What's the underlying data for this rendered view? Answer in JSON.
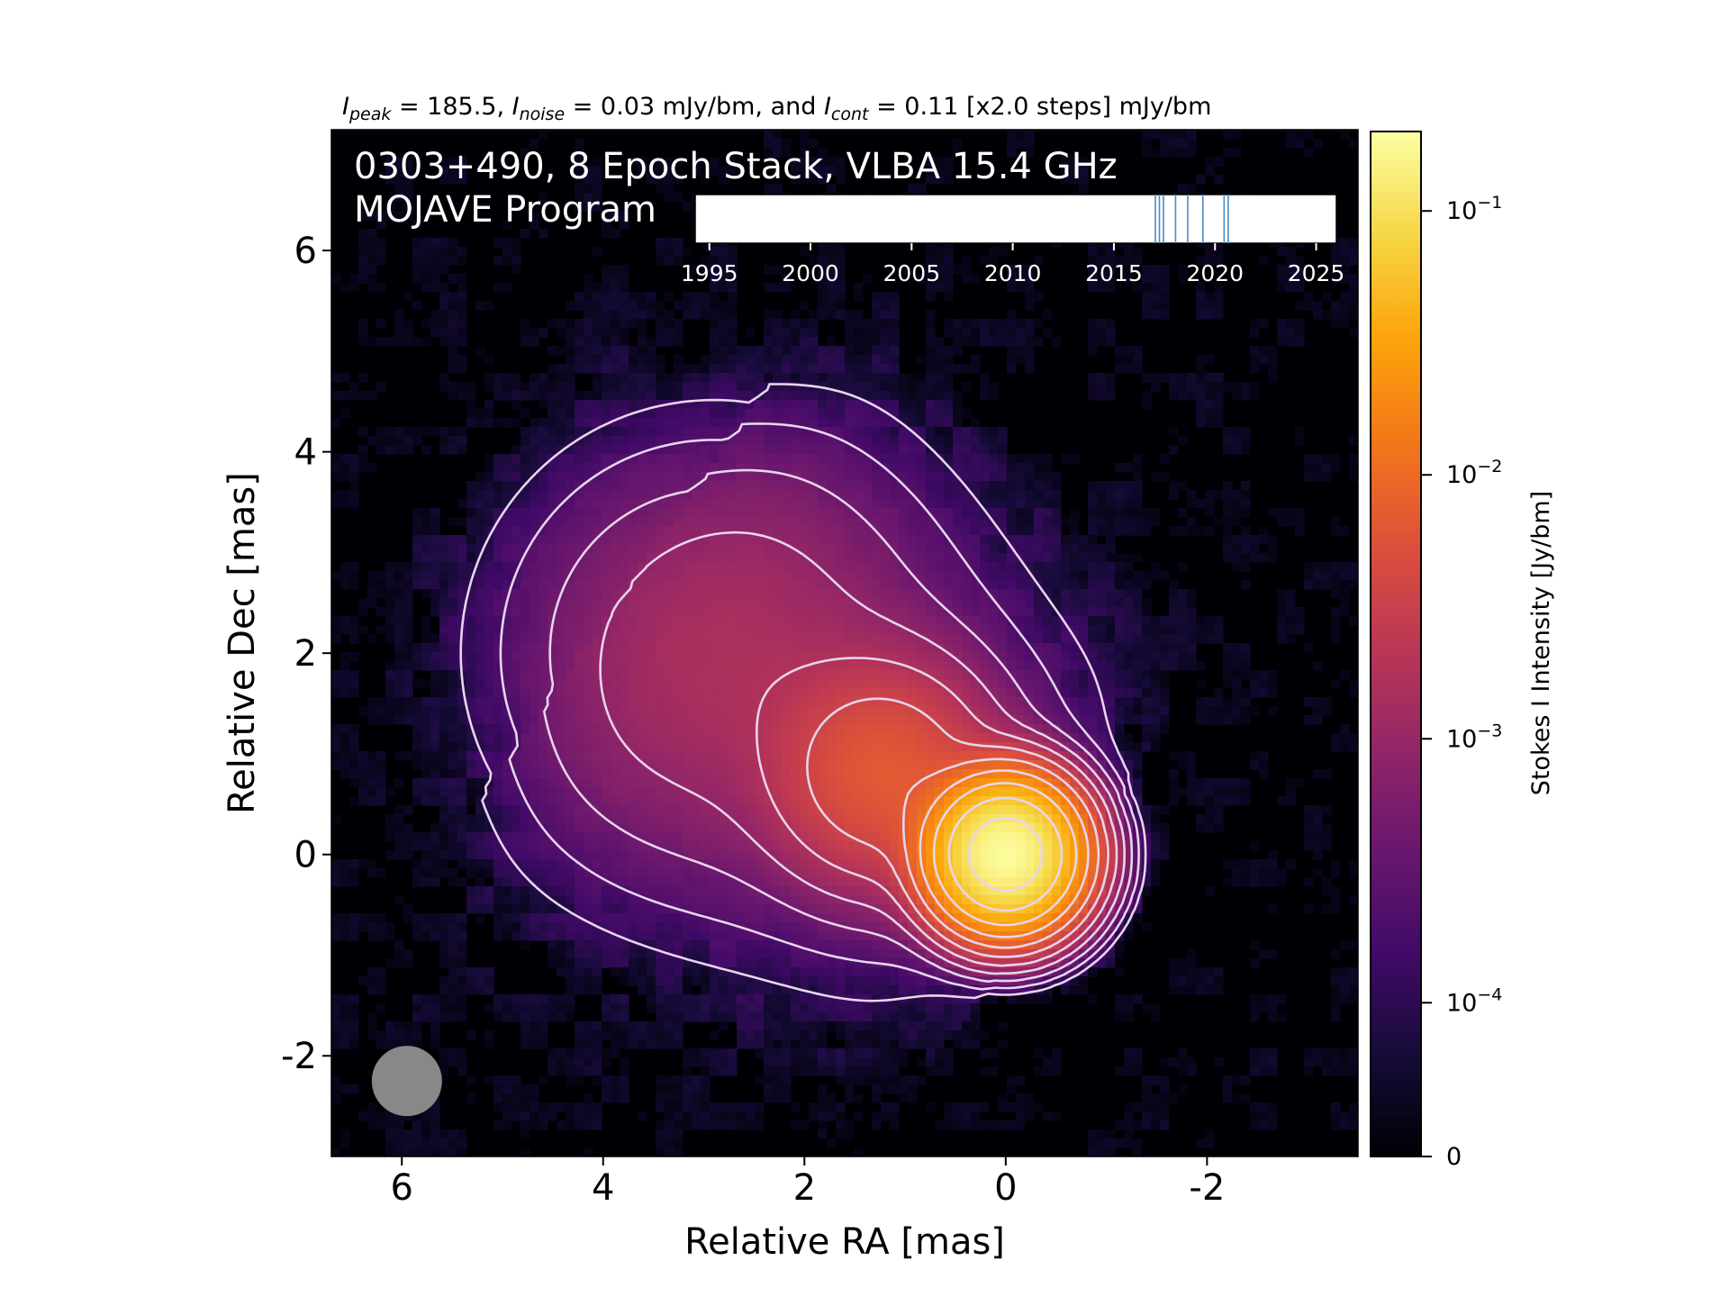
{
  "chart_data": {
    "type": "heatmap",
    "header": {
      "parts": [
        {
          "sym": "I",
          "sub": "peak"
        },
        {
          "text": " = 185.5, "
        },
        {
          "sym": "I",
          "sub": "noise"
        },
        {
          "text": " = 0.03 mJy/bm, and "
        },
        {
          "sym": "I",
          "sub": "cont"
        },
        {
          "text": " = 0.11 [x2.0 steps] mJy/bm"
        }
      ]
    },
    "overlay_title": [
      "0303+490, 8 Epoch Stack, VLBA 15.4 GHz",
      "MOJAVE Program"
    ],
    "xlabel": "Relative RA [mas]",
    "ylabel": "Relative Dec [mas]",
    "xlim": [
      6.7,
      -3.5
    ],
    "ylim": [
      -3.0,
      7.2
    ],
    "xticks": [
      6,
      4,
      2,
      0,
      -2
    ],
    "yticks": [
      6,
      4,
      2,
      0,
      -2
    ],
    "colorbar": {
      "label": "Stokes I Intensity [Jy/bm]",
      "scale": "log",
      "ticks": [
        {
          "value": 0.1,
          "mant": "10",
          "exp": "−1"
        },
        {
          "value": 0.01,
          "mant": "10",
          "exp": "−2"
        },
        {
          "value": 0.001,
          "mant": "10",
          "exp": "−3"
        },
        {
          "value": 0.0001,
          "mant": "10",
          "exp": "−4"
        },
        {
          "value": 0,
          "label": "0"
        }
      ],
      "colormap": "inferno"
    },
    "source": {
      "core": {
        "ra": 0.0,
        "dec": 0.0,
        "peak_jy": 0.1855
      },
      "jet_components": [
        {
          "ra": 1.2,
          "dec": 0.8,
          "peak_jy": 0.006
        },
        {
          "ra": 2.9,
          "dec": 2.0,
          "peak_jy": 0.0012
        }
      ]
    },
    "contours": {
      "base_mjy": 0.11,
      "factor": 2.0,
      "count": 11,
      "color": "#e8d5ec"
    },
    "beam": {
      "ra": 5.95,
      "dec": -2.25,
      "fwhm_mas": 0.7,
      "color": "#888888"
    },
    "epochs": {
      "axis_ticks": [
        1995,
        2000,
        2005,
        2010,
        2015,
        2020,
        2025
      ],
      "xlim": [
        1994.3,
        2026.0
      ],
      "dates": [
        2017.05,
        2017.25,
        2017.45,
        2018.05,
        2018.65,
        2019.4,
        2020.45,
        2020.65
      ],
      "line_color": "#4c8cc4"
    }
  }
}
